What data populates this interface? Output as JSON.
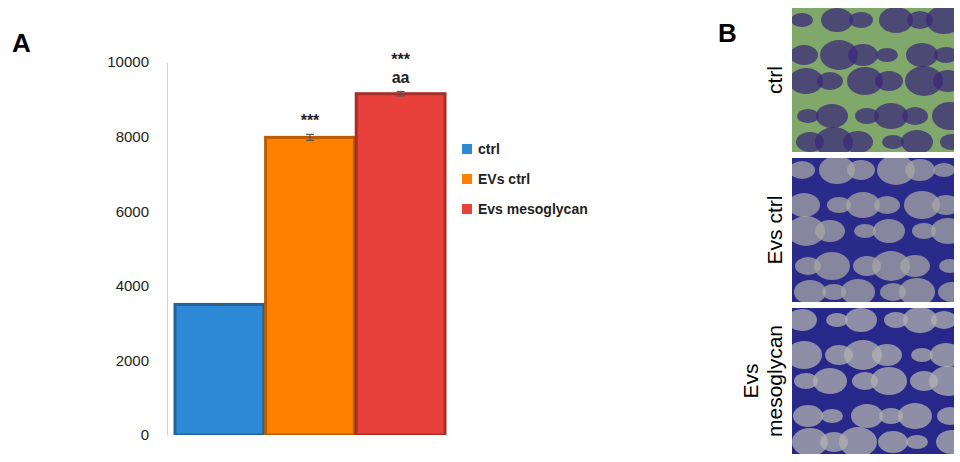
{
  "chart_data": {
    "type": "bar",
    "categories": [
      null
    ],
    "series": [
      {
        "name": "ctrl",
        "color": "#2e8ad6",
        "values": [
          3500
        ],
        "errors": [
          20
        ]
      },
      {
        "name": "EVs ctrl",
        "color": "#ff8000",
        "values": [
          7980
        ],
        "errors": [
          80
        ]
      },
      {
        "name": "Evs mesoglycan",
        "color": "#e8403a",
        "values": [
          9150
        ],
        "errors": [
          60
        ]
      }
    ],
    "ylim": [
      0,
      10000
    ],
    "yticks": [
      0,
      2000,
      4000,
      6000,
      8000,
      10000
    ],
    "grid": false,
    "legend": "right",
    "annotations": [
      {
        "text": "***",
        "series": 1,
        "index": 0
      },
      {
        "text": "***",
        "series": 2,
        "index": 0
      },
      {
        "text": "aa",
        "series": 2,
        "index": 0
      }
    ]
  },
  "panel_labels": [
    "A",
    "B"
  ],
  "images": {
    "labels": [
      "ctrl",
      "Evs ctrl",
      "Evs mesoglycan"
    ]
  }
}
